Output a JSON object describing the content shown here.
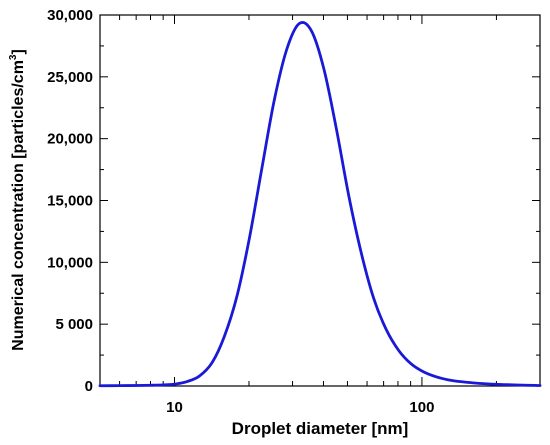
{
  "chart_data": {
    "type": "line",
    "title": "",
    "xlabel": "Droplet diameter [nm]",
    "ylabel": {
      "text": "Numerical concentration [particles/cm",
      "superscript": "3",
      "suffix": "]"
    },
    "xscale": "log",
    "xlim": [
      5,
      300
    ],
    "ylim": [
      0,
      30000
    ],
    "grid": false,
    "legend": "none",
    "x_ticks": [
      {
        "value": 10,
        "label": "10"
      },
      {
        "value": 100,
        "label": "100"
      }
    ],
    "y_ticks": [
      {
        "value": 0,
        "label": "0"
      },
      {
        "value": 5000,
        "label": "5 000"
      },
      {
        "value": 10000,
        "label": "10,000"
      },
      {
        "value": 15000,
        "label": "15,000"
      },
      {
        "value": 20000,
        "label": "20,000"
      },
      {
        "value": 25000,
        "label": "25,000"
      },
      {
        "value": 30000,
        "label": "30,000"
      }
    ],
    "series": [
      {
        "color": "#1a1ad6",
        "x": [
          5.0,
          6.0,
          7.0,
          8.0,
          9.0,
          10.0,
          11.2,
          12.6,
          14.2,
          15.9,
          17.9,
          20.1,
          22.5,
          25.3,
          28.4,
          31.9,
          35.8,
          40.2,
          45.1,
          50.6,
          56.8,
          63.8,
          71.6,
          80.4,
          90.3,
          101.3,
          113.8,
          127.7,
          143.4,
          161.0,
          180.7,
          202.9,
          227.7,
          255.7,
          287.0,
          300.0
        ],
        "y": [
          20,
          30,
          40,
          60,
          90,
          150,
          350,
          800,
          1900,
          4000,
          7300,
          12000,
          17500,
          23100,
          27200,
          29300,
          28700,
          25600,
          20800,
          15400,
          10800,
          7100,
          4600,
          2900,
          1800,
          1150,
          750,
          500,
          350,
          250,
          180,
          130,
          100,
          70,
          50,
          40
        ]
      }
    ]
  }
}
